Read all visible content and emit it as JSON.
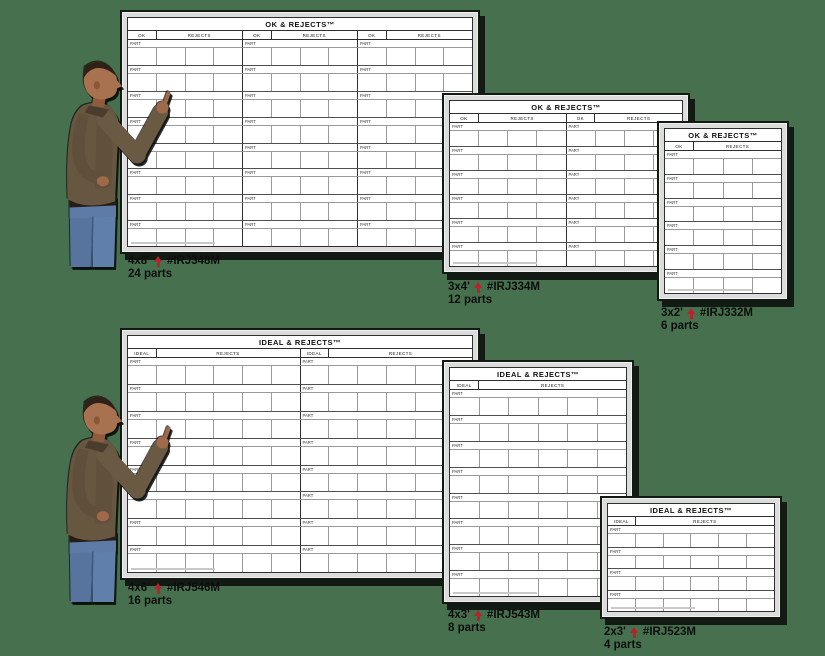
{
  "page": {
    "background_color": "#47714e",
    "accent_red": "#b6232b"
  },
  "boards": [
    {
      "key": "board-4x8",
      "title": "OK & REJECTS™",
      "ok_header": "OK",
      "rejects_header": "REJECTS",
      "part_label": "PART",
      "groups": 3,
      "rows": 8,
      "reject_cells": 3,
      "caption": {
        "size": "4x8'",
        "sku": "#IRJ348M",
        "parts": "24 parts"
      }
    },
    {
      "key": "board-3x4",
      "title": "OK & REJECTS™",
      "ok_header": "OK",
      "rejects_header": "REJECTS",
      "part_label": "PART",
      "groups": 2,
      "rows": 6,
      "reject_cells": 3,
      "caption": {
        "size": "3x4'",
        "sku": "#IRJ334M",
        "parts": "12 parts"
      }
    },
    {
      "key": "board-3x2",
      "title": "OK & REJECTS™",
      "ok_header": "OK",
      "rejects_header": "REJECTS",
      "part_label": "PART",
      "groups": 1,
      "rows": 6,
      "reject_cells": 3,
      "caption": {
        "size": "3x2'",
        "sku": "#IRJ332M",
        "parts": "6 parts"
      }
    },
    {
      "key": "board-4x6",
      "title": "IDEAL & REJECTS™",
      "ok_header": "IDEAL",
      "rejects_header": "REJECTS",
      "part_label": "PART",
      "groups": 2,
      "rows": 8,
      "reject_cells": 5,
      "caption": {
        "size": "4x6'",
        "sku": "#IRJ546M",
        "parts": "16 parts"
      }
    },
    {
      "key": "board-4x3",
      "title": "IDEAL & REJECTS™",
      "ok_header": "IDEAL",
      "rejects_header": "REJECTS",
      "part_label": "PART",
      "groups": 1,
      "rows": 8,
      "reject_cells": 5,
      "caption": {
        "size": "4x3'",
        "sku": "#IRJ543M",
        "parts": "8 parts"
      }
    },
    {
      "key": "board-2x3",
      "title": "IDEAL & REJECTS™",
      "ok_header": "IDEAL",
      "rejects_header": "REJECTS",
      "part_label": "PART",
      "groups": 1,
      "rows": 4,
      "reject_cells": 5,
      "caption": {
        "size": "2x3'",
        "sku": "#IRJ523M",
        "parts": "4 parts"
      }
    }
  ]
}
